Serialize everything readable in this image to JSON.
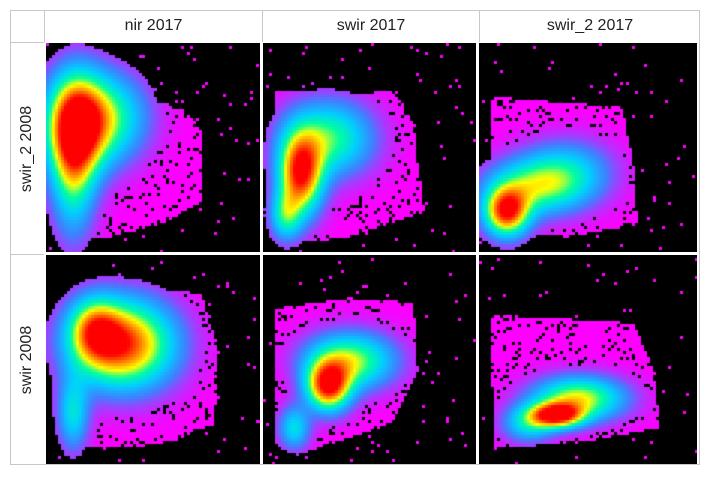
{
  "chart_data": {
    "type": "heatmap",
    "columns": [
      "nir 2017",
      "swir 2017",
      "swir_2 2017"
    ],
    "rows": [
      "swir_2 2008",
      "swir 2008"
    ],
    "colormap": [
      "#ff00ff",
      "#4080ff",
      "#00d0ff",
      "#00ffa0",
      "#ffff00",
      "#ff8000",
      "#ff0000"
    ],
    "background": "#000000",
    "panels": [
      {
        "row": "swir_2 2008",
        "column": "nir 2017",
        "shape": "tall-left-plume"
      },
      {
        "row": "swir_2 2008",
        "column": "swir 2017",
        "shape": "tilted-plume"
      },
      {
        "row": "swir_2 2008",
        "column": "swir_2 2017",
        "shape": "low-left-cluster"
      },
      {
        "row": "swir 2008",
        "column": "nir 2017",
        "shape": "broad-blob"
      },
      {
        "row": "swir 2008",
        "column": "swir 2017",
        "shape": "diagonal-plume"
      },
      {
        "row": "swir 2008",
        "column": "swir_2 2017",
        "shape": "flat-diagonal-plume"
      }
    ]
  }
}
